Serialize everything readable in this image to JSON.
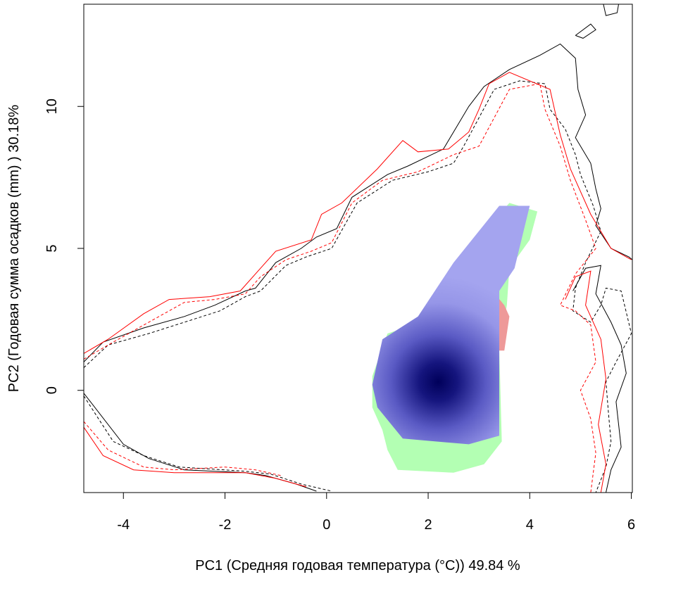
{
  "chart_data": {
    "type": "heatmap",
    "title": "",
    "xlabel": "PC1 (Средняя годовая температура (°C)) 49.84 %",
    "ylabel": "PC2 (Годовая сумма осадков  (mm) ) 30.18%",
    "xlim": [
      -4.78,
      6.02
    ],
    "ylim": [
      -3.6,
      13.6
    ],
    "xticks": [
      -4,
      -2,
      0,
      2,
      4,
      6
    ],
    "yticks": [
      0,
      5,
      10
    ],
    "grid": false,
    "legend": "none",
    "colors": {
      "green": "#b3ffb3",
      "red": "#ee9999",
      "blue_light": "#a0a0ee",
      "blue_dark": "#00005a",
      "black": "#000000",
      "red_line": "#ff0000"
    },
    "density": {
      "center": [
        2.2,
        0.3
      ],
      "peak_value": 1.0
    },
    "regions": {
      "blue": [
        [
          0.9,
          0.2
        ],
        [
          1.1,
          1.8
        ],
        [
          1.8,
          2.6
        ],
        [
          2.5,
          4.5
        ],
        [
          3.4,
          6.5
        ],
        [
          4.0,
          6.5
        ],
        [
          3.7,
          4.3
        ],
        [
          3.4,
          3.5
        ],
        [
          3.4,
          -1.6
        ],
        [
          2.8,
          -1.9
        ],
        [
          1.5,
          -1.7
        ],
        [
          1.0,
          -0.6
        ]
      ],
      "green": [
        [
          0.9,
          0.5
        ],
        [
          1.2,
          2.0
        ],
        [
          1.7,
          2.3
        ],
        [
          2.4,
          4.0
        ],
        [
          3.1,
          5.6
        ],
        [
          3.6,
          6.6
        ],
        [
          4.15,
          6.3
        ],
        [
          4.0,
          5.3
        ],
        [
          3.6,
          4.3
        ],
        [
          3.55,
          3.0
        ],
        [
          3.4,
          1.5
        ],
        [
          3.45,
          -1.8
        ],
        [
          3.1,
          -2.6
        ],
        [
          2.5,
          -2.9
        ],
        [
          1.4,
          -2.8
        ],
        [
          1.2,
          -2.1
        ],
        [
          1.1,
          -1.4
        ],
        [
          0.9,
          -0.6
        ]
      ],
      "red": [
        [
          2.1,
          2.6
        ],
        [
          2.3,
          3.2
        ],
        [
          2.6,
          4.5
        ],
        [
          2.9,
          4.3
        ],
        [
          3.5,
          3.0
        ],
        [
          3.6,
          2.6
        ],
        [
          3.5,
          1.4
        ],
        [
          3.35,
          1.4
        ],
        [
          3.3,
          2.8
        ],
        [
          2.5,
          3.0
        ],
        [
          2.1,
          2.4
        ]
      ]
    },
    "series": [
      {
        "style": "black-solid",
        "segments": [
          [
            [
              -4.78,
              1.0
            ],
            [
              -4.4,
              1.7
            ],
            [
              -3.6,
              2.2
            ],
            [
              -2.8,
              2.6
            ],
            [
              -2.2,
              3.0
            ],
            [
              -1.6,
              3.5
            ],
            [
              -1.4,
              3.6
            ],
            [
              -1.0,
              4.5
            ],
            [
              -0.5,
              5.0
            ],
            [
              -0.2,
              5.4
            ],
            [
              0.2,
              5.7
            ],
            [
              0.5,
              6.8
            ],
            [
              1.2,
              7.6
            ],
            [
              1.6,
              7.9
            ],
            [
              2.3,
              8.5
            ],
            [
              2.6,
              9.4
            ],
            [
              2.8,
              10.0
            ],
            [
              3.1,
              10.7
            ],
            [
              3.6,
              11.3
            ],
            [
              4.2,
              11.8
            ],
            [
              4.6,
              12.2
            ],
            [
              4.9,
              11.7
            ],
            [
              4.95,
              10.6
            ],
            [
              5.1,
              9.7
            ],
            [
              4.9,
              8.9
            ],
            [
              5.2,
              8.0
            ],
            [
              5.3,
              7.1
            ],
            [
              5.4,
              6.4
            ],
            [
              5.3,
              5.8
            ],
            [
              5.6,
              5.0
            ],
            [
              5.95,
              4.7
            ],
            [
              6.02,
              4.6
            ]
          ],
          [
            [
              4.85,
              3.5
            ],
            [
              5.1,
              4.3
            ],
            [
              5.4,
              4.4
            ],
            [
              5.3,
              3.4
            ],
            [
              5.6,
              2.4
            ],
            [
              5.8,
              1.6
            ],
            [
              5.9,
              0.6
            ],
            [
              5.7,
              -0.4
            ],
            [
              5.75,
              -1.2
            ],
            [
              5.8,
              -2.0
            ],
            [
              5.6,
              -2.8
            ],
            [
              5.5,
              -3.6
            ]
          ],
          [
            [
              -4.78,
              -0.1
            ],
            [
              -4.0,
              -1.9
            ],
            [
              -3.5,
              -2.4
            ],
            [
              -2.8,
              -2.8
            ],
            [
              -1.6,
              -2.9
            ],
            [
              -1.2,
              -3.0
            ],
            [
              -0.6,
              -3.3
            ],
            [
              -0.2,
              -3.55
            ]
          ],
          [
            [
              4.9,
              12.5
            ],
            [
              5.2,
              12.9
            ],
            [
              5.3,
              12.7
            ],
            [
              5.05,
              12.4
            ],
            [
              4.9,
              12.5
            ]
          ],
          [
            [
              5.45,
              13.6
            ],
            [
              5.5,
              13.2
            ],
            [
              5.72,
              13.3
            ],
            [
              5.75,
              13.6
            ]
          ]
        ]
      },
      {
        "style": "black-dashed",
        "segments": [
          [
            [
              -4.78,
              0.8
            ],
            [
              -4.3,
              1.6
            ],
            [
              -3.5,
              2.0
            ],
            [
              -2.8,
              2.4
            ],
            [
              -2.1,
              2.8
            ],
            [
              -1.6,
              3.3
            ],
            [
              -1.3,
              3.5
            ],
            [
              -0.8,
              4.4
            ],
            [
              -0.4,
              4.7
            ],
            [
              0.1,
              5.0
            ],
            [
              0.6,
              6.6
            ],
            [
              1.3,
              7.4
            ],
            [
              2.0,
              7.7
            ],
            [
              2.5,
              8.0
            ],
            [
              2.7,
              8.6
            ],
            [
              3.0,
              9.6
            ],
            [
              3.3,
              10.6
            ],
            [
              3.8,
              10.9
            ],
            [
              4.3,
              10.8
            ],
            [
              4.4,
              9.9
            ],
            [
              4.7,
              9.2
            ],
            [
              4.9,
              8.3
            ],
            [
              5.0,
              7.6
            ],
            [
              5.25,
              6.5
            ],
            [
              5.4,
              5.6
            ],
            [
              5.1,
              4.5
            ],
            [
              4.9,
              3.6
            ],
            [
              4.85,
              2.8
            ],
            [
              5.2,
              2.4
            ],
            [
              5.4,
              3.0
            ],
            [
              5.5,
              3.6
            ],
            [
              5.8,
              3.5
            ],
            [
              6.0,
              2.0
            ],
            [
              5.7,
              1.0
            ],
            [
              5.5,
              0.3
            ],
            [
              5.55,
              -0.8
            ],
            [
              5.6,
              -1.8
            ],
            [
              5.5,
              -2.7
            ],
            [
              5.3,
              -3.6
            ]
          ],
          [
            [
              -4.78,
              -0.2
            ],
            [
              -4.2,
              -1.8
            ],
            [
              -3.6,
              -2.3
            ],
            [
              -2.9,
              -2.7
            ],
            [
              -1.6,
              -2.85
            ],
            [
              -1.1,
              -2.95
            ],
            [
              -0.5,
              -3.3
            ],
            [
              0.1,
              -3.55
            ]
          ]
        ]
      },
      {
        "style": "red-solid",
        "segments": [
          [
            [
              -4.78,
              1.3
            ],
            [
              -4.3,
              1.8
            ],
            [
              -3.6,
              2.7
            ],
            [
              -3.1,
              3.2
            ],
            [
              -2.3,
              3.3
            ],
            [
              -1.7,
              3.5
            ],
            [
              -1.3,
              4.3
            ],
            [
              -1.0,
              4.9
            ],
            [
              -0.3,
              5.3
            ],
            [
              -0.1,
              6.2
            ],
            [
              0.3,
              6.6
            ],
            [
              1.0,
              7.8
            ],
            [
              1.5,
              8.8
            ],
            [
              1.8,
              8.4
            ],
            [
              2.4,
              8.5
            ],
            [
              2.8,
              9.1
            ],
            [
              3.0,
              9.9
            ],
            [
              3.2,
              10.8
            ],
            [
              3.6,
              11.2
            ],
            [
              4.4,
              10.6
            ],
            [
              4.6,
              9.0
            ],
            [
              4.8,
              7.8
            ],
            [
              5.2,
              6.2
            ],
            [
              5.6,
              5.0
            ],
            [
              6.0,
              4.6
            ]
          ],
          [
            [
              4.7,
              3.2
            ],
            [
              4.9,
              4.0
            ],
            [
              5.2,
              4.2
            ],
            [
              5.1,
              3.0
            ],
            [
              5.4,
              1.8
            ],
            [
              5.5,
              0.4
            ],
            [
              5.35,
              -1.2
            ],
            [
              5.5,
              -2.6
            ],
            [
              5.4,
              -3.6
            ]
          ],
          [
            [
              -4.78,
              -1.3
            ],
            [
              -4.4,
              -2.3
            ],
            [
              -3.8,
              -2.8
            ],
            [
              -3.0,
              -2.9
            ],
            [
              -2.2,
              -2.9
            ],
            [
              -1.6,
              -2.9
            ],
            [
              -1.0,
              -3.1
            ],
            [
              -0.4,
              -3.4
            ]
          ]
        ]
      },
      {
        "style": "red-dashed",
        "segments": [
          [
            [
              -4.78,
              1.1
            ],
            [
              -4.2,
              1.7
            ],
            [
              -3.5,
              2.4
            ],
            [
              -2.8,
              3.1
            ],
            [
              -2.2,
              3.2
            ],
            [
              -1.6,
              3.4
            ],
            [
              -1.3,
              4.0
            ],
            [
              -0.8,
              4.6
            ],
            [
              -0.3,
              4.9
            ],
            [
              0.1,
              5.2
            ],
            [
              0.5,
              6.6
            ],
            [
              1.1,
              7.4
            ],
            [
              1.8,
              7.7
            ],
            [
              2.5,
              8.3
            ],
            [
              3.0,
              8.6
            ],
            [
              3.3,
              9.6
            ],
            [
              3.6,
              10.6
            ],
            [
              4.2,
              10.8
            ],
            [
              4.3,
              9.9
            ],
            [
              4.6,
              8.6
            ],
            [
              4.8,
              7.4
            ],
            [
              5.1,
              6.0
            ],
            [
              5.3,
              5.0
            ],
            [
              4.9,
              4.1
            ],
            [
              4.6,
              3.0
            ],
            [
              4.9,
              2.8
            ],
            [
              5.2,
              2.3
            ],
            [
              5.3,
              1.0
            ],
            [
              5.0,
              0.0
            ],
            [
              5.2,
              -1.0
            ],
            [
              5.3,
              -2.2
            ],
            [
              5.2,
              -3.6
            ]
          ],
          [
            [
              -4.78,
              -1.1
            ],
            [
              -4.3,
              -2.1
            ],
            [
              -3.6,
              -2.7
            ],
            [
              -3.0,
              -2.8
            ],
            [
              -2.0,
              -2.7
            ],
            [
              -1.4,
              -2.8
            ],
            [
              -0.9,
              -3.0
            ]
          ]
        ]
      }
    ]
  }
}
